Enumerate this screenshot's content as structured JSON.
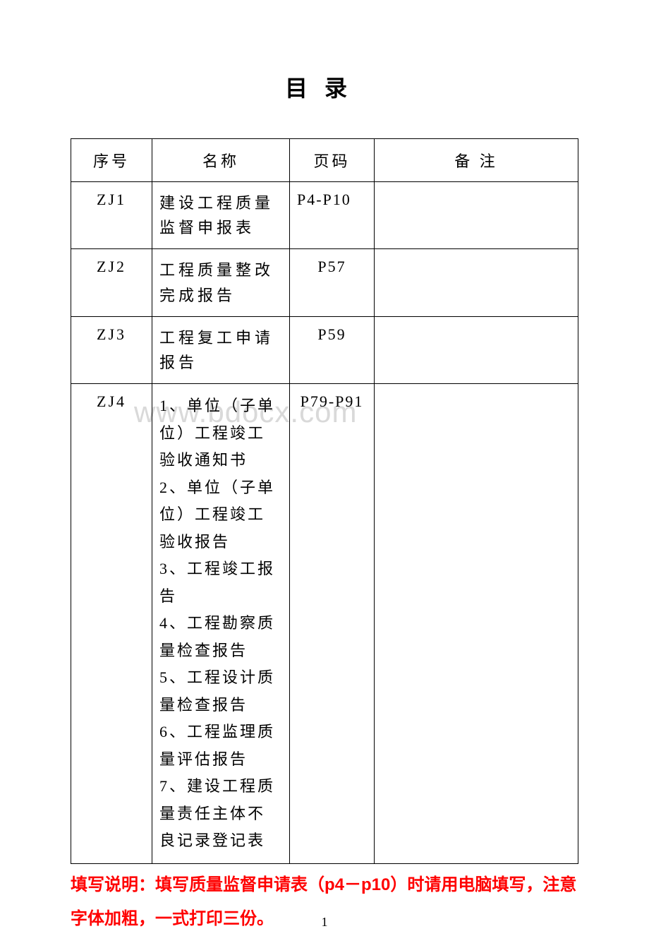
{
  "title": "目录",
  "watermark": "www.bdocx.com",
  "table": {
    "headers": {
      "seq": "序号",
      "name": "名称",
      "page": "页码",
      "remark": "备  注"
    },
    "rows": [
      {
        "seq": "ZJ1",
        "name": "建设工程质量监督申报表",
        "page": "P4-P10",
        "remark": ""
      },
      {
        "seq": "ZJ2",
        "name": "工程质量整改完成报告",
        "page": "P57",
        "remark": ""
      },
      {
        "seq": "ZJ3",
        "name": "工程复工申请报告",
        "page": "P59",
        "remark": ""
      },
      {
        "seq": "ZJ4",
        "name_list": "1、单位（子单位）工程竣工验收通知书\n2、单位（子单位）工程竣工验收报告\n3、工程竣工报告\n4、工程勘察质量检查报告\n5、工程设计质量检查报告\n6、工程监理质量评估报告\n7、建设工程质量责任主体不良记录登记表",
        "page": "P79-P91",
        "remark": ""
      }
    ]
  },
  "note": "填写说明：填写质量监督申请表（p4－p10）时请用电脑填写，注意字体加粗，一式打印三份。",
  "page_number": "1",
  "styles": {
    "background_color": "#ffffff",
    "text_color": "#000000",
    "note_color": "#ff0000",
    "watermark_color": "#d9d9d9",
    "border_color": "#000000",
    "title_fontsize": 32,
    "cell_fontsize": 22,
    "list_fontsize": 18,
    "note_fontsize": 24,
    "page_fontsize": 18
  }
}
